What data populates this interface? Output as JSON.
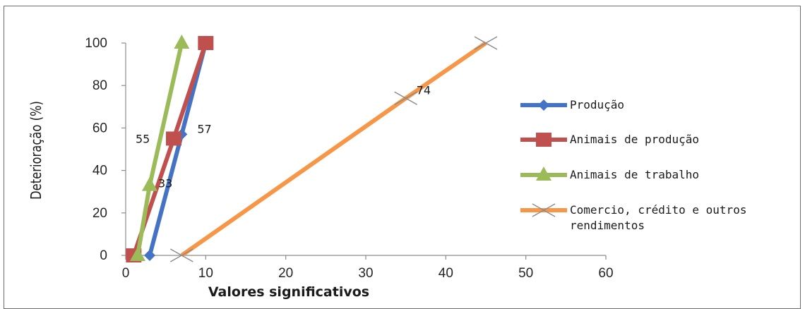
{
  "chart_data": {
    "type": "line",
    "xlabel": "Valores significativos",
    "ylabel": "Deterioração (%)",
    "xlim": [
      0,
      60
    ],
    "ylim": [
      0,
      100
    ],
    "xticks": [
      0,
      10,
      20,
      30,
      40,
      50,
      60
    ],
    "yticks": [
      0,
      20,
      40,
      60,
      80,
      100
    ],
    "legend_position": "right",
    "series": [
      {
        "name": "Produção",
        "color": "#4472C4",
        "marker": "diamond",
        "points": [
          [
            3,
            0
          ],
          [
            7,
            57
          ],
          [
            10,
            100
          ]
        ],
        "labels": [
          {
            "index": 1,
            "text": "57"
          }
        ]
      },
      {
        "name": "Animais de produção",
        "color": "#C0504D",
        "marker": "square",
        "points": [
          [
            1,
            0
          ],
          [
            6,
            55
          ],
          [
            10,
            100
          ]
        ],
        "labels": [
          {
            "index": 1,
            "text": "55"
          }
        ]
      },
      {
        "name": "Animais de trabalho",
        "color": "#9BBB59",
        "marker": "triangle",
        "points": [
          [
            1.5,
            0
          ],
          [
            3,
            33
          ],
          [
            7,
            100
          ]
        ],
        "labels": [
          {
            "index": 1,
            "text": "33"
          }
        ]
      },
      {
        "name": "Comercio, crédito e outros rendimentos",
        "color": "#F79646",
        "marker": "x",
        "points": [
          [
            7,
            0
          ],
          [
            35,
            74
          ],
          [
            45,
            100
          ]
        ],
        "labels": [
          {
            "index": 1,
            "text": "74"
          }
        ]
      }
    ]
  }
}
